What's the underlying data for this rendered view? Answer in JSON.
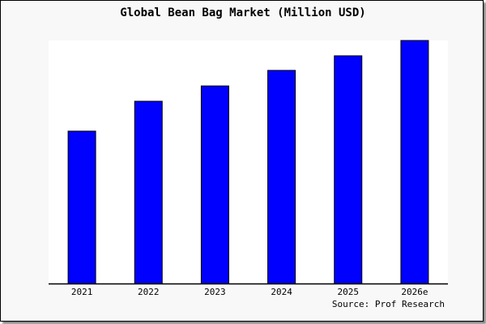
{
  "chart_data": {
    "type": "bar",
    "title": "Global Bean Bag Market (Million USD)",
    "categories": [
      "2021",
      "2022",
      "2023",
      "2024",
      "2025",
      "2026e"
    ],
    "values": [
      62.7,
      75.0,
      81.3,
      87.7,
      93.7,
      100.0
    ],
    "ylim": [
      0,
      100
    ],
    "xlabel": "",
    "ylabel": "",
    "grid": false,
    "source": "Source: Prof Research",
    "bar_color": "#0000ff",
    "plot_background": "#ffffff",
    "background": "#f8f8f8"
  }
}
